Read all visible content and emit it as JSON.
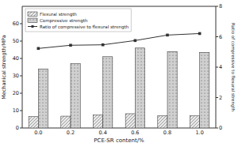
{
  "chart_data": {
    "type": "bar",
    "xlabel": "PCE-SR content/%",
    "ylabel": "Mechanical strength/MPa",
    "y2label": "Ratio of compressive to flexural strength",
    "categories": [
      "0.0",
      "0.2",
      "0.4",
      "0.6",
      "0.8",
      "1.0"
    ],
    "series": [
      {
        "name": "Flexural strength",
        "color": "#e8e8e8",
        "values": [
          6.5,
          6.8,
          7.5,
          8.2,
          7.0,
          7.0
        ]
      },
      {
        "name": "Compressive strength",
        "color": "#d0d0d0",
        "values": [
          34.0,
          37.0,
          41.0,
          46.0,
          44.0,
          43.5
        ]
      },
      {
        "name": "Ratio of compressive to flexural strength",
        "type": "line",
        "axis": "y2",
        "color": "#333333",
        "marker": "square",
        "values": [
          5.23,
          5.44,
          5.47,
          5.75,
          6.11,
          6.21
        ]
      }
    ],
    "ylim": [
      0,
      70
    ],
    "yticks": [
      0,
      10,
      20,
      30,
      40,
      50,
      60
    ],
    "y2lim": [
      0,
      8
    ],
    "y2ticks": [
      0,
      2,
      4,
      6,
      8
    ],
    "legend": "upper left"
  }
}
